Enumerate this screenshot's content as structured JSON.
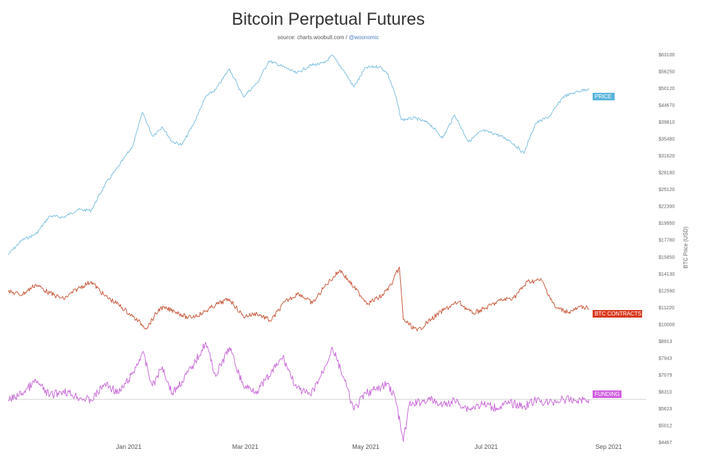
{
  "chart_data": {
    "type": "line",
    "title": "Bitcoin Perpetual Futures",
    "subtitle_source": "source: charts.woobull.com / ",
    "subtitle_handle": "@woonomic",
    "ylabel": "BTC Price (USD)",
    "x_ticks": [
      "Jan 2021",
      "Mar 2021",
      "May 2021",
      "Jul 2021",
      "Sep 2021"
    ],
    "y_ticks": [
      "$63100",
      "$56250",
      "$50120",
      "$44670",
      "$39810",
      "$35480",
      "$31620",
      "$28180",
      "$25120",
      "$22390",
      "$19950",
      "$17780",
      "$15850",
      "$14130",
      "$12590",
      "$11220",
      "$10000",
      "$8913",
      "$7943",
      "$7079",
      "$6310",
      "$5623",
      "$5012",
      "$4467"
    ],
    "x_range": [
      "2020-11-01",
      "2021-09-20"
    ],
    "series": [
      {
        "name": "PRICE",
        "color": "#7cbfe0",
        "badge_color": "#5bb5dc",
        "points": [
          [
            "2020-11-01",
            13700
          ],
          [
            "2020-11-08",
            15300
          ],
          [
            "2020-11-15",
            16000
          ],
          [
            "2020-11-22",
            18400
          ],
          [
            "2020-11-29",
            18200
          ],
          [
            "2020-12-06",
            19300
          ],
          [
            "2020-12-13",
            19200
          ],
          [
            "2020-12-20",
            23400
          ],
          [
            "2020-12-27",
            27000
          ],
          [
            "2021-01-03",
            31500
          ],
          [
            "2021-01-08",
            40800
          ],
          [
            "2021-01-13",
            34000
          ],
          [
            "2021-01-18",
            36500
          ],
          [
            "2021-01-23",
            32500
          ],
          [
            "2021-01-28",
            31800
          ],
          [
            "2021-02-03",
            37500
          ],
          [
            "2021-02-09",
            46000
          ],
          [
            "2021-02-14",
            48500
          ],
          [
            "2021-02-21",
            57000
          ],
          [
            "2021-02-28",
            46000
          ],
          [
            "2021-03-07",
            51000
          ],
          [
            "2021-03-13",
            60500
          ],
          [
            "2021-03-20",
            58000
          ],
          [
            "2021-03-27",
            55000
          ],
          [
            "2021-04-03",
            58500
          ],
          [
            "2021-04-10",
            59500
          ],
          [
            "2021-04-14",
            63100
          ],
          [
            "2021-04-20",
            56000
          ],
          [
            "2021-04-25",
            49500
          ],
          [
            "2021-05-01",
            57500
          ],
          [
            "2021-05-08",
            58000
          ],
          [
            "2021-05-12",
            55000
          ],
          [
            "2021-05-16",
            46500
          ],
          [
            "2021-05-19",
            38500
          ],
          [
            "2021-05-26",
            39000
          ],
          [
            "2021-06-02",
            37500
          ],
          [
            "2021-06-09",
            33500
          ],
          [
            "2021-06-15",
            40000
          ],
          [
            "2021-06-22",
            32500
          ],
          [
            "2021-06-29",
            35500
          ],
          [
            "2021-07-06",
            34500
          ],
          [
            "2021-07-13",
            32800
          ],
          [
            "2021-07-20",
            29800
          ],
          [
            "2021-07-26",
            37500
          ],
          [
            "2021-08-02",
            39500
          ],
          [
            "2021-08-09",
            46000
          ],
          [
            "2021-08-15",
            47500
          ],
          [
            "2021-08-22",
            49000
          ]
        ]
      },
      {
        "name": "BTC CONTRACTS",
        "color": "#c8573a",
        "badge_color": "#d9381e",
        "points": [
          [
            "2020-11-01",
            12100
          ],
          [
            "2020-11-08",
            11900
          ],
          [
            "2020-11-15",
            12600
          ],
          [
            "2020-11-22",
            12000
          ],
          [
            "2020-11-29",
            11600
          ],
          [
            "2020-12-06",
            12300
          ],
          [
            "2020-12-13",
            12800
          ],
          [
            "2020-12-20",
            11800
          ],
          [
            "2020-12-27",
            11200
          ],
          [
            "2021-01-03",
            10400
          ],
          [
            "2021-01-10",
            9600
          ],
          [
            "2021-01-17",
            11000
          ],
          [
            "2021-01-24",
            10800
          ],
          [
            "2021-01-31",
            10300
          ],
          [
            "2021-02-07",
            10600
          ],
          [
            "2021-02-14",
            11200
          ],
          [
            "2021-02-21",
            11600
          ],
          [
            "2021-02-28",
            10400
          ],
          [
            "2021-03-07",
            10600
          ],
          [
            "2021-03-14",
            10100
          ],
          [
            "2021-03-21",
            11400
          ],
          [
            "2021-03-28",
            12000
          ],
          [
            "2021-04-04",
            11300
          ],
          [
            "2021-04-11",
            12600
          ],
          [
            "2021-04-18",
            13600
          ],
          [
            "2021-04-25",
            12400
          ],
          [
            "2021-05-02",
            11300
          ],
          [
            "2021-05-09",
            11800
          ],
          [
            "2021-05-14",
            12600
          ],
          [
            "2021-05-18",
            13800
          ],
          [
            "2021-05-20",
            10200
          ],
          [
            "2021-05-27",
            9400
          ],
          [
            "2021-06-03",
            10200
          ],
          [
            "2021-06-10",
            10900
          ],
          [
            "2021-06-17",
            11400
          ],
          [
            "2021-06-24",
            10600
          ],
          [
            "2021-07-01",
            11000
          ],
          [
            "2021-07-08",
            11500
          ],
          [
            "2021-07-15",
            11700
          ],
          [
            "2021-07-22",
            12800
          ],
          [
            "2021-07-29",
            12900
          ],
          [
            "2021-08-05",
            11000
          ],
          [
            "2021-08-12",
            10700
          ],
          [
            "2021-08-19",
            11100
          ],
          [
            "2021-08-22",
            10900
          ]
        ]
      },
      {
        "name": "FUNDING",
        "color": "#c86ad8",
        "badge_color": "#d15fe0",
        "points": [
          [
            "2020-11-01",
            6200
          ],
          [
            "2020-11-08",
            6500
          ],
          [
            "2020-11-15",
            7000
          ],
          [
            "2020-11-22",
            6400
          ],
          [
            "2020-11-29",
            6600
          ],
          [
            "2020-12-06",
            6350
          ],
          [
            "2020-12-13",
            6200
          ],
          [
            "2020-12-20",
            6900
          ],
          [
            "2020-12-27",
            6500
          ],
          [
            "2021-01-03",
            7300
          ],
          [
            "2021-01-08",
            8200
          ],
          [
            "2021-01-13",
            6800
          ],
          [
            "2021-01-18",
            7600
          ],
          [
            "2021-01-23",
            6500
          ],
          [
            "2021-01-28",
            7000
          ],
          [
            "2021-02-03",
            7700
          ],
          [
            "2021-02-09",
            8600
          ],
          [
            "2021-02-14",
            7200
          ],
          [
            "2021-02-21",
            8400
          ],
          [
            "2021-02-28",
            6800
          ],
          [
            "2021-03-07",
            6600
          ],
          [
            "2021-03-13",
            7200
          ],
          [
            "2021-03-20",
            8000
          ],
          [
            "2021-03-27",
            6700
          ],
          [
            "2021-04-03",
            6400
          ],
          [
            "2021-04-10",
            7500
          ],
          [
            "2021-04-14",
            8400
          ],
          [
            "2021-04-20",
            7100
          ],
          [
            "2021-04-25",
            5800
          ],
          [
            "2021-05-01",
            6500
          ],
          [
            "2021-05-08",
            6700
          ],
          [
            "2021-05-12",
            6900
          ],
          [
            "2021-05-16",
            6300
          ],
          [
            "2021-05-20",
            4500
          ],
          [
            "2021-05-23",
            6000
          ],
          [
            "2021-06-02",
            6250
          ],
          [
            "2021-06-09",
            6000
          ],
          [
            "2021-06-15",
            6200
          ],
          [
            "2021-06-22",
            5850
          ],
          [
            "2021-06-29",
            6050
          ],
          [
            "2021-07-06",
            5900
          ],
          [
            "2021-07-13",
            6100
          ],
          [
            "2021-07-20",
            5950
          ],
          [
            "2021-07-26",
            6200
          ],
          [
            "2021-08-02",
            6100
          ],
          [
            "2021-08-09",
            6250
          ],
          [
            "2021-08-15",
            6200
          ],
          [
            "2021-08-22",
            6250
          ]
        ]
      }
    ]
  }
}
